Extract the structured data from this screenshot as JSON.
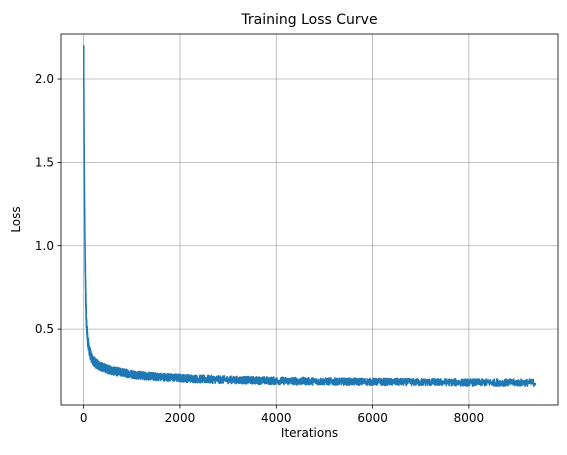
{
  "chart_data": {
    "type": "line",
    "title": "Training Loss Curve",
    "xlabel": "Iterations",
    "ylabel": "Loss",
    "xlim": [
      -470,
      9850
    ],
    "ylim": [
      0.045,
      2.27
    ],
    "xticks": [
      0,
      2000,
      4000,
      6000,
      8000
    ],
    "yticks": [
      0.5,
      1.0,
      1.5,
      2.0
    ],
    "xtick_labels": [
      "0",
      "2000",
      "4000",
      "6000",
      "8000"
    ],
    "ytick_labels": [
      "0.5",
      "1.0",
      "1.5",
      "2.0"
    ],
    "grid": true,
    "legend": false,
    "series": [
      {
        "color": "#1f77b4",
        "x": [
          0,
          10,
          20,
          30,
          40,
          50,
          60,
          80,
          100,
          130,
          160,
          200,
          250,
          300,
          400,
          500,
          600,
          800,
          1000,
          1200,
          1500,
          2000,
          2500,
          3000,
          3500,
          4000,
          4500,
          5000,
          5500,
          6000,
          6500,
          7000,
          7500,
          8000,
          8500,
          9000,
          9380
        ],
        "y": [
          2.2,
          1.65,
          1.25,
          0.95,
          0.75,
          0.62,
          0.53,
          0.45,
          0.4,
          0.36,
          0.33,
          0.31,
          0.295,
          0.285,
          0.27,
          0.26,
          0.25,
          0.24,
          0.23,
          0.222,
          0.215,
          0.207,
          0.2,
          0.196,
          0.193,
          0.19,
          0.188,
          0.186,
          0.185,
          0.184,
          0.183,
          0.182,
          0.181,
          0.18,
          0.18,
          0.179,
          0.179
        ],
        "noise": [
          0.02,
          0.03,
          0.04,
          0.07,
          0.08,
          0.06,
          0.05,
          0.045,
          0.04,
          0.035,
          0.03,
          0.03,
          0.028,
          0.028,
          0.027,
          0.026,
          0.026,
          0.025,
          0.025,
          0.025,
          0.024,
          0.024,
          0.024,
          0.023,
          0.023,
          0.023,
          0.023,
          0.022,
          0.022,
          0.022,
          0.022,
          0.022,
          0.022,
          0.022,
          0.022,
          0.022,
          0.022
        ]
      }
    ]
  }
}
